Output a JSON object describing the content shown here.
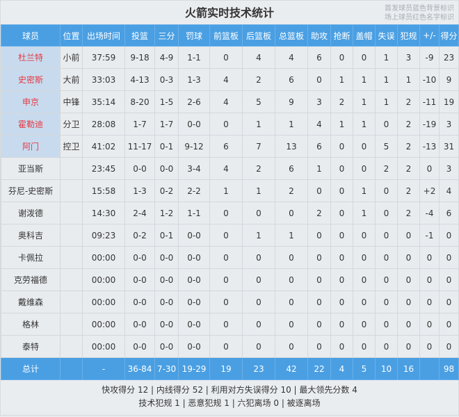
{
  "title": "火箭实时技术统计",
  "legend_note": [
    "首发球员蓝色背景标识",
    "场上球员红色名字标识"
  ],
  "headers": [
    "球员",
    "位置",
    "出场时间",
    "投篮",
    "三分",
    "罚球",
    "前篮板",
    "后篮板",
    "总篮板",
    "助攻",
    "抢断",
    "盖帽",
    "失误",
    "犯规",
    "+/-",
    "得分"
  ],
  "players": [
    {
      "name": "杜兰特",
      "pos": "小前",
      "starter": true,
      "on_court": true,
      "stats": [
        "37:59",
        "9-18",
        "4-9",
        "1-1",
        "0",
        "4",
        "4",
        "6",
        "0",
        "0",
        "1",
        "3",
        "-9",
        "23"
      ]
    },
    {
      "name": "史密斯",
      "pos": "大前",
      "starter": true,
      "on_court": true,
      "stats": [
        "33:03",
        "4-13",
        "0-3",
        "1-3",
        "4",
        "2",
        "6",
        "0",
        "1",
        "1",
        "1",
        "1",
        "-10",
        "9"
      ]
    },
    {
      "name": "申京",
      "pos": "中锋",
      "starter": true,
      "on_court": true,
      "stats": [
        "35:14",
        "8-20",
        "1-5",
        "2-6",
        "4",
        "5",
        "9",
        "3",
        "2",
        "1",
        "1",
        "2",
        "-11",
        "19"
      ]
    },
    {
      "name": "霍勒迪",
      "pos": "分卫",
      "starter": true,
      "on_court": true,
      "stats": [
        "28:08",
        "1-7",
        "1-7",
        "0-0",
        "0",
        "1",
        "1",
        "4",
        "1",
        "1",
        "0",
        "2",
        "-19",
        "3"
      ]
    },
    {
      "name": "阿门",
      "pos": "控卫",
      "starter": true,
      "on_court": true,
      "stats": [
        "41:02",
        "11-17",
        "0-1",
        "9-12",
        "6",
        "7",
        "13",
        "6",
        "0",
        "0",
        "5",
        "2",
        "-13",
        "31"
      ]
    },
    {
      "name": "亚当斯",
      "pos": "",
      "starter": false,
      "on_court": false,
      "stats": [
        "23:45",
        "0-0",
        "0-0",
        "3-4",
        "4",
        "2",
        "6",
        "1",
        "0",
        "0",
        "2",
        "2",
        "0",
        "3"
      ]
    },
    {
      "name": "芬尼-史密斯",
      "pos": "",
      "starter": false,
      "on_court": false,
      "stats": [
        "15:58",
        "1-3",
        "0-2",
        "2-2",
        "1",
        "1",
        "2",
        "0",
        "0",
        "1",
        "0",
        "2",
        "+2",
        "4"
      ]
    },
    {
      "name": "谢泼德",
      "pos": "",
      "starter": false,
      "on_court": false,
      "stats": [
        "14:30",
        "2-4",
        "1-2",
        "1-1",
        "0",
        "0",
        "0",
        "2",
        "0",
        "1",
        "0",
        "2",
        "-4",
        "6"
      ]
    },
    {
      "name": "奥科吉",
      "pos": "",
      "starter": false,
      "on_court": false,
      "stats": [
        "09:23",
        "0-2",
        "0-1",
        "0-0",
        "0",
        "1",
        "1",
        "0",
        "0",
        "0",
        "0",
        "0",
        "-1",
        "0"
      ]
    },
    {
      "name": "卡佩拉",
      "pos": "",
      "starter": false,
      "on_court": false,
      "stats": [
        "00:00",
        "0-0",
        "0-0",
        "0-0",
        "0",
        "0",
        "0",
        "0",
        "0",
        "0",
        "0",
        "0",
        "0",
        "0"
      ]
    },
    {
      "name": "克劳福德",
      "pos": "",
      "starter": false,
      "on_court": false,
      "stats": [
        "00:00",
        "0-0",
        "0-0",
        "0-0",
        "0",
        "0",
        "0",
        "0",
        "0",
        "0",
        "0",
        "0",
        "0",
        "0"
      ]
    },
    {
      "name": "戴维森",
      "pos": "",
      "starter": false,
      "on_court": false,
      "stats": [
        "00:00",
        "0-0",
        "0-0",
        "0-0",
        "0",
        "0",
        "0",
        "0",
        "0",
        "0",
        "0",
        "0",
        "0",
        "0"
      ]
    },
    {
      "name": "格林",
      "pos": "",
      "starter": false,
      "on_court": false,
      "stats": [
        "00:00",
        "0-0",
        "0-0",
        "0-0",
        "0",
        "0",
        "0",
        "0",
        "0",
        "0",
        "0",
        "0",
        "0",
        "0"
      ]
    },
    {
      "name": "泰特",
      "pos": "",
      "starter": false,
      "on_court": false,
      "stats": [
        "00:00",
        "0-0",
        "0-0",
        "0-0",
        "0",
        "0",
        "0",
        "0",
        "0",
        "0",
        "0",
        "0",
        "0",
        "0"
      ]
    }
  ],
  "totals": {
    "label": "总计",
    "pos": "",
    "stats": [
      "-",
      "36-84",
      "7-30",
      "19-29",
      "19",
      "23",
      "42",
      "22",
      "4",
      "5",
      "10",
      "16",
      "",
      "98"
    ]
  },
  "footer": [
    "快攻得分 12 | 内线得分 52 | 利用对方失误得分 10 | 最大领先分数 4",
    "技术犯规 1 | 恶意犯规 1 | 六犯离场 0 | 被逐离场"
  ],
  "colors": {
    "header": "#4a9fe3",
    "starter_bg": "#c8dbee",
    "on_court_name": "#e33b45",
    "background": "#e9ecef"
  }
}
